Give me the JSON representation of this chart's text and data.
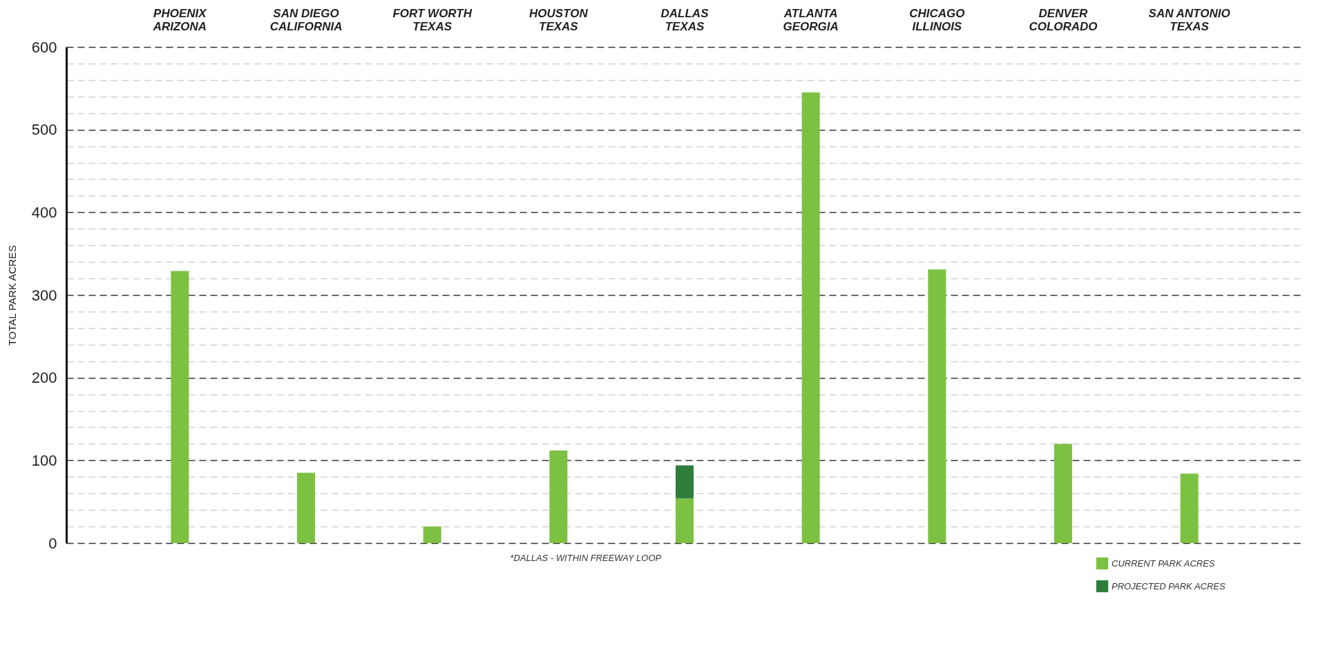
{
  "chart_data": {
    "type": "bar",
    "ylabel": "TOTAL PARK ACRES",
    "categories": [
      "PHOENIX\nARIZONA",
      "SAN DIEGO\nCALIFORNIA",
      "FORT WORTH\nTEXAS",
      "HOUSTON\nTEXAS",
      "DALLAS\nTEXAS",
      "ATLANTA\nGEORGIA",
      "CHICAGO\nILLINOIS",
      "DENVER\nCOLORADO",
      "SAN ANTONIO\nTEXAS"
    ],
    "series": [
      {
        "name": "CURRENT PARK ACRES",
        "color": "#7dc142",
        "values": [
          329,
          85,
          20,
          112,
          54,
          545,
          331,
          120,
          84
        ]
      },
      {
        "name": "PROJECTED PARK ACRES",
        "color": "#2e7d3a",
        "values": [
          null,
          null,
          null,
          null,
          40,
          null,
          null,
          null,
          null
        ]
      }
    ],
    "stacked": true,
    "ylim": [
      0,
      600
    ],
    "yticks": [
      0,
      {
        "value": 20,
        "label": null
      },
      {
        "value": 40,
        "label": null
      },
      {
        "value": 60,
        "label": null
      },
      {
        "value": 80,
        "label": null
      },
      100,
      {
        "value": 120,
        "label": null
      },
      {
        "value": 140,
        "label": null
      },
      {
        "value": 160,
        "label": null
      },
      {
        "value": 180,
        "label": null
      },
      200,
      {
        "value": 220,
        "label": null
      },
      {
        "value": 240,
        "label": null
      },
      {
        "value": 260,
        "label": null
      },
      {
        "value": 280,
        "label": null
      },
      300,
      {
        "value": 320,
        "label": null
      },
      {
        "value": 340,
        "label": null
      },
      {
        "value": 360,
        "label": null
      },
      {
        "value": 380,
        "label": null
      },
      400,
      {
        "value": 420,
        "label": null
      },
      {
        "value": 440,
        "label": null
      },
      {
        "value": 460,
        "label": null
      },
      {
        "value": 480,
        "label": null
      },
      500,
      {
        "value": 520,
        "label": null
      },
      {
        "value": 540,
        "label": null
      },
      {
        "value": 560,
        "label": null
      },
      {
        "value": 580,
        "label": null
      },
      600
    ],
    "grid": true,
    "legend": "bottom right",
    "annotations": [
      "*DALLAS - WITHIN FREEWAY LOOP"
    ]
  }
}
